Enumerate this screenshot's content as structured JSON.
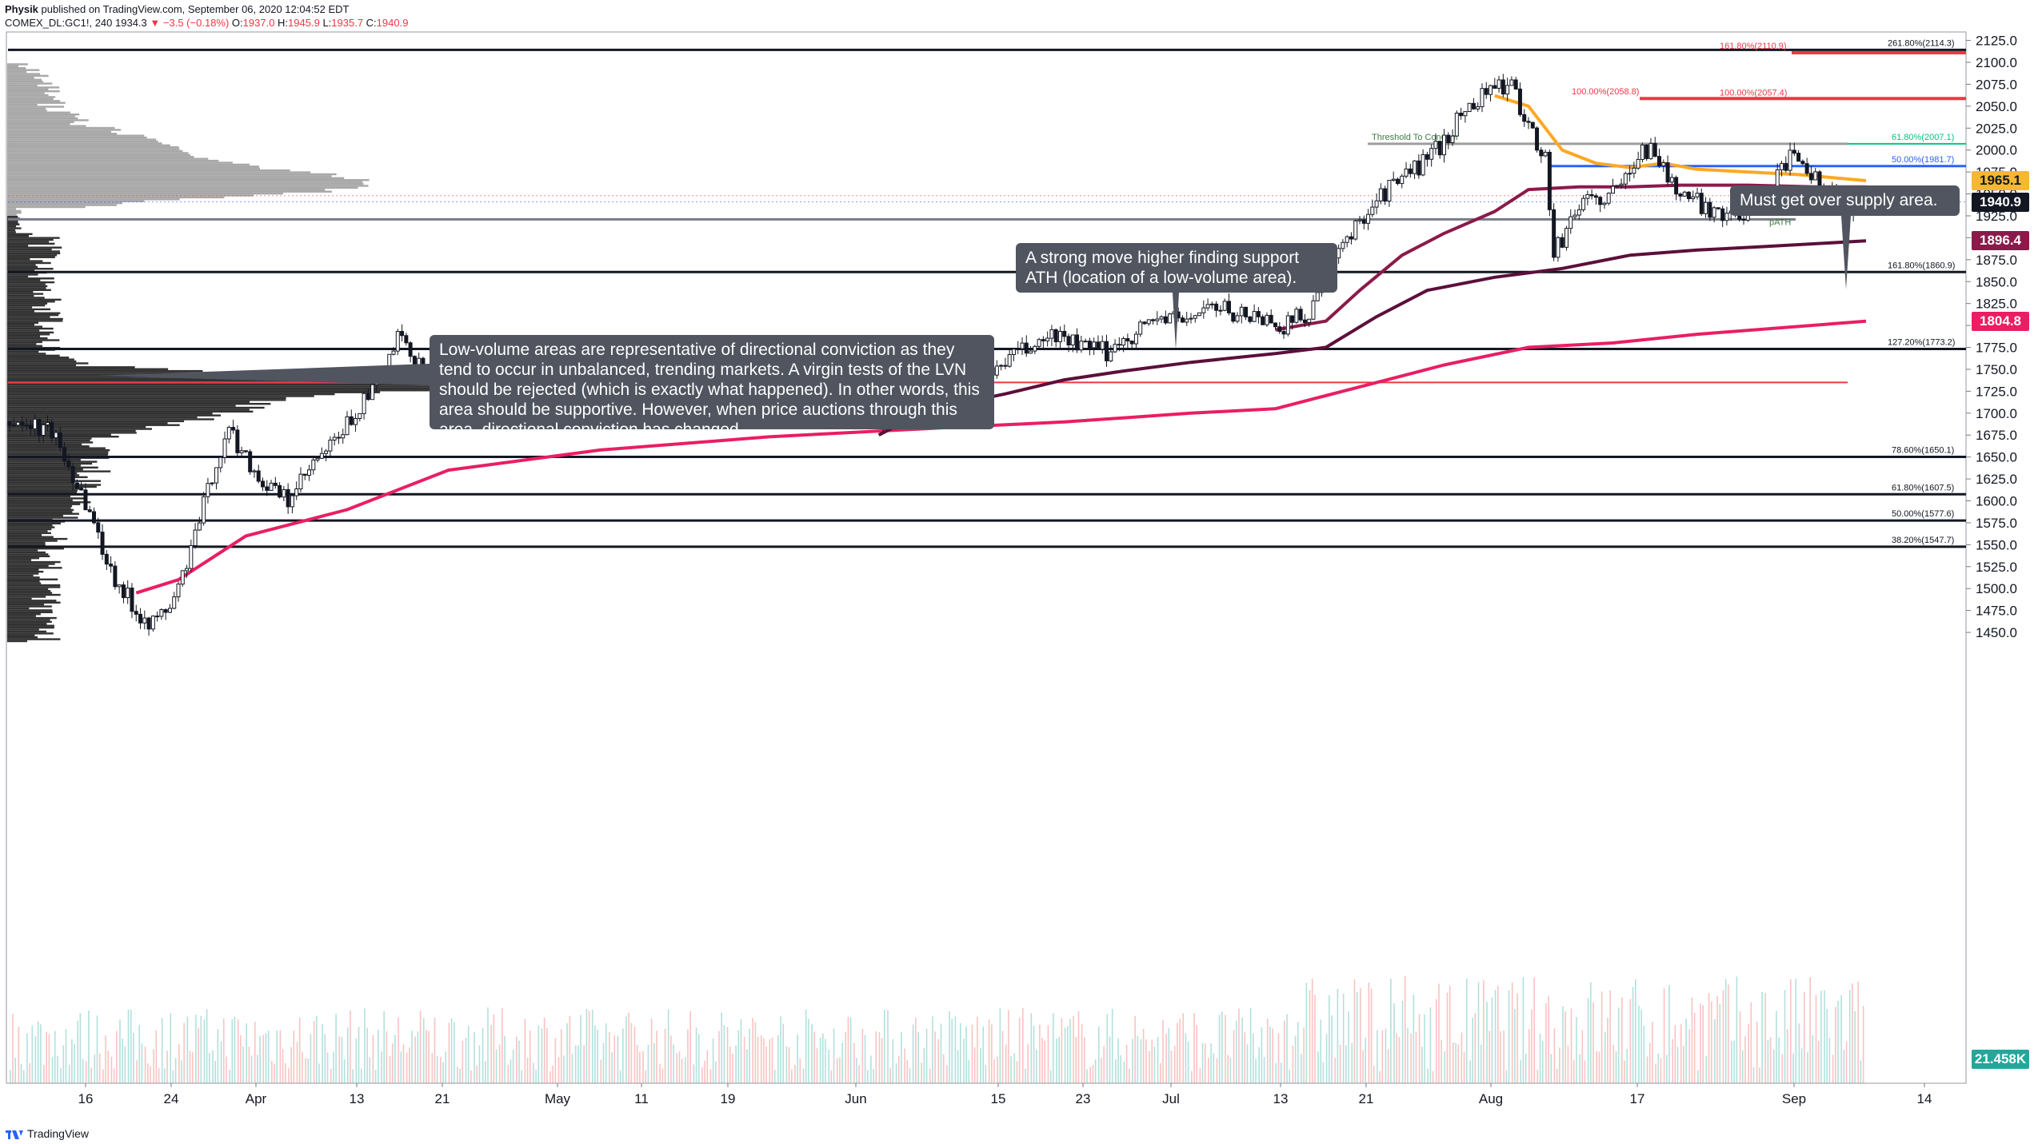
{
  "header": {
    "author": "Physik",
    "published": "published on TradingView.com, September 06, 2020 12:04:52 EDT",
    "symbol": "COMEX_DL:GC1!, 240",
    "last": "1934.3",
    "change": "−3.5 (−0.18%)",
    "o_label": "O:",
    "o_value": "1937.0",
    "h_label": "H:",
    "h_value": "1945.9",
    "l_label": "L:",
    "l_value": "1935.7",
    "c_label": "C:",
    "c_value": "1940.9"
  },
  "footer": {
    "brand": "TradingView"
  },
  "colors": {
    "up": "#26a69a",
    "down": "#ef5350",
    "candle": "#131722",
    "ma_short": "#ffa726",
    "ma_mid": "#8b1a4a",
    "ma_long": "#5c0f3a",
    "ma_200": "#e91e63",
    "fib": "#131722",
    "fib_red": "#f23645",
    "blue_line": "#2962ff",
    "threshold": "#00c77d",
    "poc": "#f23645",
    "gray_line": "#787b86"
  },
  "price_labels": [
    {
      "value": 1965.1,
      "text": "1965.1",
      "bg": "#f5b831",
      "fg": "#131722"
    },
    {
      "value": 1940.9,
      "text": "1940.9",
      "bg": "#131722",
      "fg": "#ffffff"
    },
    {
      "value": 1896.4,
      "text": "1896.4",
      "bg": "#8b1a4a",
      "fg": "#ffffff"
    },
    {
      "value": 1804.8,
      "text": "1804.8",
      "bg": "#e91e63",
      "fg": "#ffffff"
    }
  ],
  "volume_label": {
    "text": "21.458K",
    "bg": "#26a69a",
    "fg": "#ffffff"
  },
  "callouts": {
    "lvn": "Low-volume areas are representative of directional conviction as they tend to occur in unbalanced, trending markets. A virgin tests of the LVN should be rejected (which is exactly what happened). In other words, this area should be supportive. However, when price auctions through this area, directional conviction has changed.",
    "ath": "A strong move higher finding support ATH (location of a low-volume area).",
    "supply": "Must get over supply area."
  },
  "chart_data": {
    "type": "candlestick",
    "title": "",
    "xlabel": "",
    "ylabel": "",
    "ylim": [
      1430,
      2140
    ],
    "y_ticks": [
      1450,
      1475,
      1500,
      1525,
      1550,
      1575,
      1600,
      1625,
      1650,
      1675,
      1700,
      1725,
      1750,
      1775,
      1800,
      1825,
      1850,
      1875,
      1900,
      1925,
      1950,
      1975,
      2000,
      2025,
      2050,
      2075,
      2100,
      2125
    ],
    "y_tick_labels": [
      "1450.0",
      "1475.0",
      "1500.0",
      "1525.0",
      "1550.0",
      "1575.0",
      "1600.0",
      "1625.0",
      "1650.0",
      "1675.0",
      "1700.0",
      "1725.0",
      "1750.0",
      "1775.0",
      "1800.0",
      "1825.0",
      "1850.0",
      "1875.0",
      "1900.0",
      "1925.0",
      "1950.0",
      "1975.0",
      "2000.0",
      "2025.0",
      "2050.0",
      "2075.0",
      "2100.0",
      "2125.0"
    ],
    "x_tick_labels": [
      "16",
      "24",
      "Apr",
      "13",
      "21",
      "May",
      "11",
      "19",
      "Jun",
      "15",
      "23",
      "Jul",
      "13",
      "21",
      "Aug",
      "17",
      "Sep",
      "14"
    ],
    "price_path": [
      [
        0,
        1690
      ],
      [
        5,
        1680
      ],
      [
        9,
        1600
      ],
      [
        12,
        1520
      ],
      [
        15,
        1475
      ],
      [
        17,
        1460
      ],
      [
        19,
        1480
      ],
      [
        20,
        1500
      ],
      [
        22,
        1560
      ],
      [
        24,
        1630
      ],
      [
        26,
        1680
      ],
      [
        28,
        1650
      ],
      [
        30,
        1620
      ],
      [
        33,
        1600
      ],
      [
        36,
        1640
      ],
      [
        38,
        1660
      ],
      [
        41,
        1700
      ],
      [
        44,
        1740
      ],
      [
        46,
        1785
      ],
      [
        48,
        1760
      ],
      [
        51,
        1740
      ],
      [
        54,
        1730
      ],
      [
        57,
        1750
      ],
      [
        59,
        1740
      ],
      [
        61,
        1725
      ],
      [
        63,
        1700
      ],
      [
        66,
        1705
      ],
      [
        69,
        1715
      ],
      [
        72,
        1710
      ],
      [
        75,
        1725
      ],
      [
        78,
        1760
      ],
      [
        80,
        1745
      ],
      [
        83,
        1730
      ],
      [
        86,
        1720
      ],
      [
        89,
        1700
      ],
      [
        92,
        1725
      ],
      [
        95,
        1745
      ],
      [
        98,
        1740
      ],
      [
        101,
        1720
      ],
      [
        103,
        1685
      ],
      [
        106,
        1710
      ],
      [
        109,
        1740
      ],
      [
        112,
        1725
      ],
      [
        115,
        1735
      ],
      [
        118,
        1760
      ],
      [
        121,
        1775
      ],
      [
        124,
        1790
      ],
      [
        127,
        1775
      ],
      [
        130,
        1770
      ],
      [
        133,
        1790
      ],
      [
        136,
        1810
      ],
      [
        139,
        1805
      ],
      [
        142,
        1822
      ],
      [
        145,
        1815
      ],
      [
        148,
        1810
      ],
      [
        151,
        1800
      ],
      [
        154,
        1815
      ],
      [
        156,
        1855
      ],
      [
        158,
        1890
      ],
      [
        160,
        1920
      ],
      [
        162,
        1945
      ],
      [
        164,
        1960
      ],
      [
        166,
        1975
      ],
      [
        168,
        1990
      ],
      [
        170,
        2010
      ],
      [
        172,
        2040
      ],
      [
        174,
        2060
      ],
      [
        176,
        2075
      ],
      [
        178,
        2070
      ],
      [
        180,
        2030
      ],
      [
        182,
        1990
      ],
      [
        183,
        1880
      ],
      [
        185,
        1920
      ],
      [
        187,
        1950
      ],
      [
        189,
        1940
      ],
      [
        191,
        1960
      ],
      [
        193,
        2000
      ],
      [
        195,
        2000
      ],
      [
        197,
        1960
      ],
      [
        199,
        1945
      ],
      [
        201,
        1935
      ],
      [
        203,
        1930
      ],
      [
        205,
        1925
      ],
      [
        207,
        1945
      ],
      [
        209,
        1965
      ],
      [
        211,
        1990
      ],
      [
        213,
        1975
      ],
      [
        215,
        1955
      ],
      [
        217,
        1940
      ],
      [
        219,
        1935
      ],
      [
        220,
        1940.9
      ]
    ],
    "moving_averages": [
      {
        "name": "",
        "color": "#e91e63",
        "points": [
          [
            15,
            1495
          ],
          [
            20,
            1510
          ],
          [
            28,
            1560
          ],
          [
            40,
            1590
          ],
          [
            52,
            1635
          ],
          [
            70,
            1658
          ],
          [
            90,
            1673
          ],
          [
            110,
            1683
          ],
          [
            125,
            1690
          ],
          [
            140,
            1700
          ],
          [
            150,
            1705
          ],
          [
            160,
            1730
          ],
          [
            170,
            1755
          ],
          [
            180,
            1775
          ],
          [
            190,
            1780
          ],
          [
            200,
            1790
          ],
          [
            220,
            1804.8
          ]
        ]
      },
      {
        "name": "",
        "color": "#5c0f3a",
        "points": [
          [
            103,
            1675
          ],
          [
            108,
            1700
          ],
          [
            112,
            1710
          ],
          [
            118,
            1722
          ],
          [
            125,
            1738
          ],
          [
            132,
            1748
          ],
          [
            140,
            1758
          ],
          [
            150,
            1768
          ],
          [
            156,
            1775
          ],
          [
            162,
            1810
          ],
          [
            168,
            1840
          ],
          [
            176,
            1855
          ],
          [
            184,
            1865
          ],
          [
            192,
            1880
          ],
          [
            200,
            1886
          ],
          [
            208,
            1890
          ],
          [
            220,
            1896.4
          ]
        ]
      },
      {
        "name": "",
        "color": "#8b1a4a",
        "points": [
          [
            150,
            1795
          ],
          [
            156,
            1805
          ],
          [
            160,
            1840
          ],
          [
            165,
            1880
          ],
          [
            170,
            1905
          ],
          [
            176,
            1930
          ],
          [
            180,
            1955
          ],
          [
            186,
            1958
          ],
          [
            192,
            1958
          ],
          [
            198,
            1960
          ],
          [
            206,
            1960
          ],
          [
            214,
            1958
          ],
          [
            220,
            1958
          ]
        ]
      },
      {
        "name": "",
        "color": "#ffa726",
        "points": [
          [
            176,
            2062
          ],
          [
            180,
            2050
          ],
          [
            184,
            2000
          ],
          [
            188,
            1985
          ],
          [
            192,
            1980
          ],
          [
            196,
            1985
          ],
          [
            200,
            1978
          ],
          [
            206,
            1975
          ],
          [
            212,
            1972
          ],
          [
            220,
            1965.1
          ]
        ]
      }
    ],
    "horizontal_levels": [
      {
        "label": "261.80%(2114.3)",
        "value": 2114.3,
        "color": "#131722"
      },
      {
        "label": "161.80%(2110.9)",
        "value": 2110.9,
        "color": "#f23645"
      },
      {
        "label": "100.00%(2058.8)",
        "value": 2058.8,
        "color": "#f23645"
      },
      {
        "label": "100.00%(2057.4)",
        "value": 2057.4,
        "color": "#f23645"
      },
      {
        "label": "61.80%(2007.1)",
        "value": 2007.1,
        "color": "#00c77d"
      },
      {
        "label": "50.00%(1981.7)",
        "value": 1981.7,
        "color": "#2962ff"
      },
      {
        "label": "161.80%(1860.9)",
        "value": 1860.9,
        "color": "#131722"
      },
      {
        "label": "127.20%(1773.2)",
        "value": 1773.2,
        "color": "#131722"
      },
      {
        "label": "78.60%(1650.1)",
        "value": 1650.1,
        "color": "#131722"
      },
      {
        "label": "61.80%(1607.5)",
        "value": 1607.5,
        "color": "#131722"
      },
      {
        "label": "50.00%(1577.6)",
        "value": 1577.6,
        "color": "#131722"
      },
      {
        "label": "38.20%(1547.7)",
        "value": 1547.7,
        "color": "#131722"
      }
    ],
    "annotations": [
      {
        "text": "Threshold To Conquer",
        "value": 2007.1
      },
      {
        "text": "pATH",
        "value": 1921
      }
    ],
    "poc_value": 1735,
    "path_level_value": 1921,
    "volume_profile": "left-side volume profile: peak volume near 1735, low-volume node near 1921",
    "volume_bars": "per-bar volume histogram along bottom, last value 21.458K"
  }
}
